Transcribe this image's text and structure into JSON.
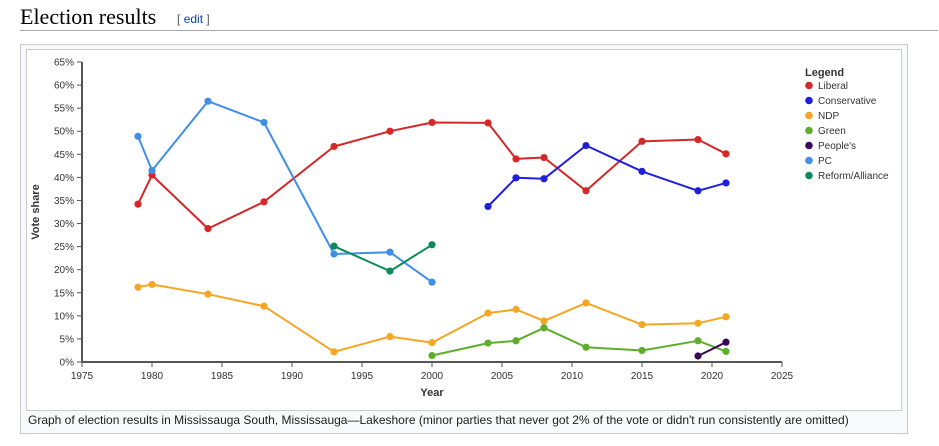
{
  "section": {
    "title": "Election results",
    "edit_open": "[",
    "edit_label": "edit",
    "edit_close": "]"
  },
  "colors": {
    "Liberal": "#d62728",
    "Conservative": "#1f1fde",
    "NDP": "#f5a623",
    "Green": "#5fad2c",
    "People's": "#3b0a57",
    "PC": "#3f8fe8",
    "Reform/Alliance": "#0c8a5a"
  },
  "caption": "Graph of election results in Mississauga South, Mississauga—Lakeshore (minor parties that never got 2% of the vote or didn't run consistently are omitted)",
  "chart_data": {
    "type": "line",
    "title": "",
    "xlabel": "Year",
    "ylabel": "Vote share",
    "xlim": [
      1975,
      2025
    ],
    "ylim": [
      0,
      65
    ],
    "x_ticks": [
      "1975",
      "1980",
      "1985",
      "1990",
      "1995",
      "2000",
      "2005",
      "2010",
      "2015",
      "2020",
      "2025"
    ],
    "y_ticks": [
      "0%",
      "5%",
      "10%",
      "15%",
      "20%",
      "25%",
      "30%",
      "35%",
      "40%",
      "45%",
      "50%",
      "55%",
      "60%",
      "65%"
    ],
    "legend_title": "Legend",
    "legend_position": "top-right",
    "series": [
      {
        "name": "Liberal",
        "points": [
          [
            1979,
            34.2
          ],
          [
            1980,
            40.5
          ],
          [
            1984,
            28.9
          ],
          [
            1988,
            34.7
          ],
          [
            1993,
            46.7
          ],
          [
            1997,
            50.0
          ],
          [
            2000,
            51.9
          ],
          [
            2004,
            51.8
          ],
          [
            2006,
            44.0
          ],
          [
            2008,
            44.3
          ],
          [
            2011,
            37.1
          ],
          [
            2015,
            47.8
          ],
          [
            2019,
            48.2
          ],
          [
            2021,
            45.1
          ]
        ]
      },
      {
        "name": "Conservative",
        "points": [
          [
            2004,
            33.7
          ],
          [
            2006,
            39.9
          ],
          [
            2008,
            39.7
          ],
          [
            2011,
            46.9
          ],
          [
            2015,
            41.3
          ],
          [
            2019,
            37.1
          ],
          [
            2021,
            38.8
          ]
        ]
      },
      {
        "name": "NDP",
        "points": [
          [
            1979,
            16.2
          ],
          [
            1980,
            16.8
          ],
          [
            1984,
            14.7
          ],
          [
            1988,
            12.1
          ],
          [
            1993,
            2.2
          ],
          [
            1997,
            5.5
          ],
          [
            2000,
            4.2
          ],
          [
            2004,
            10.6
          ],
          [
            2006,
            11.4
          ],
          [
            2008,
            8.9
          ],
          [
            2011,
            12.8
          ],
          [
            2015,
            8.1
          ],
          [
            2019,
            8.4
          ],
          [
            2021,
            9.8
          ]
        ]
      },
      {
        "name": "Green",
        "points": [
          [
            2000,
            1.4
          ],
          [
            2004,
            4.1
          ],
          [
            2006,
            4.6
          ],
          [
            2008,
            7.4
          ],
          [
            2011,
            3.2
          ],
          [
            2015,
            2.5
          ],
          [
            2019,
            4.6
          ],
          [
            2021,
            2.3
          ]
        ]
      },
      {
        "name": "People's",
        "points": [
          [
            2019,
            1.3
          ],
          [
            2021,
            4.3
          ]
        ]
      },
      {
        "name": "PC",
        "points": [
          [
            1979,
            48.9
          ],
          [
            1980,
            41.5
          ],
          [
            1984,
            56.5
          ],
          [
            1988,
            51.9
          ],
          [
            1993,
            23.4
          ],
          [
            1997,
            23.8
          ],
          [
            2000,
            17.3
          ]
        ]
      },
      {
        "name": "Reform/Alliance",
        "points": [
          [
            1993,
            25.1
          ],
          [
            1997,
            19.7
          ],
          [
            2000,
            25.4
          ]
        ]
      }
    ]
  }
}
